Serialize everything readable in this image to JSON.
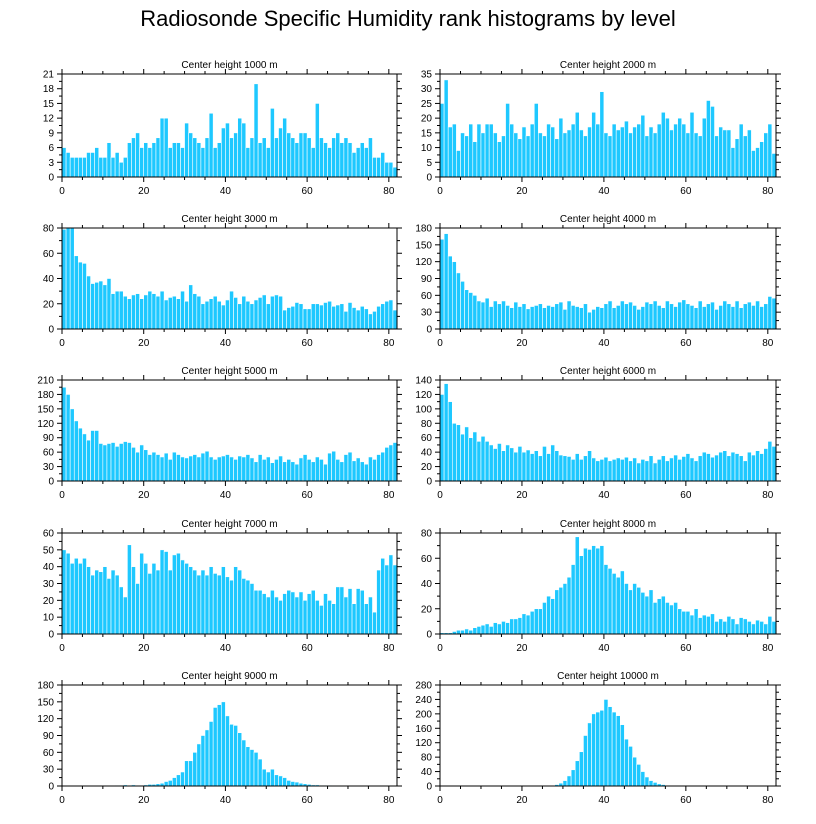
{
  "title": "Radiosonde Specific Humidity rank histograms by level",
  "colors": {
    "bar": "#1ec8ff",
    "bar_edge": "#ffffff",
    "axis": "#000000"
  },
  "chart_data": [
    {
      "type": "bar",
      "title": "Center height 1000 m",
      "x_start": 0,
      "xlim": [
        0,
        82
      ],
      "xticks": [
        0,
        20,
        40,
        60,
        80
      ],
      "ylim": [
        0,
        21
      ],
      "yticks": [
        0,
        3,
        6,
        9,
        12,
        15,
        18,
        21
      ],
      "values": [
        6,
        5,
        4,
        4,
        4,
        4,
        5,
        5,
        6,
        4,
        4,
        7,
        4,
        5,
        3,
        4,
        7,
        8,
        9,
        6,
        7,
        6,
        7,
        8,
        12,
        12,
        6,
        7,
        7,
        6,
        11,
        9,
        8,
        7,
        6,
        8,
        13,
        6,
        7,
        10,
        11,
        8,
        9,
        12,
        11,
        6,
        8,
        19,
        7,
        8,
        6,
        14,
        8,
        10,
        12,
        9,
        8,
        7,
        9,
        9,
        8,
        6,
        15,
        8,
        7,
        6,
        8,
        9,
        7,
        8,
        7,
        5,
        6,
        7,
        6,
        8,
        4,
        4,
        5,
        3,
        3,
        2
      ]
    },
    {
      "type": "bar",
      "title": "Center height 2000 m",
      "x_start": 0,
      "xlim": [
        0,
        82
      ],
      "xticks": [
        0,
        20,
        40,
        60,
        80
      ],
      "ylim": [
        0,
        35
      ],
      "yticks": [
        0,
        5,
        10,
        15,
        20,
        25,
        30,
        35
      ],
      "values": [
        25,
        33,
        17,
        18,
        9,
        15,
        14,
        18,
        12,
        18,
        15,
        18,
        18,
        15,
        12,
        14,
        25,
        18,
        15,
        13,
        17,
        14,
        18,
        25,
        15,
        14,
        18,
        17,
        13,
        20,
        15,
        16,
        18,
        22,
        16,
        14,
        17,
        22,
        18,
        29,
        15,
        14,
        18,
        16,
        17,
        19,
        15,
        17,
        18,
        21,
        14,
        17,
        15,
        18,
        22,
        20,
        16,
        18,
        20,
        18,
        15,
        22,
        15,
        14,
        20,
        26,
        24,
        14,
        17,
        16,
        16,
        10,
        13,
        18,
        14,
        16,
        9,
        10,
        12,
        15,
        18,
        8
      ]
    },
    {
      "type": "bar",
      "title": "Center height 3000 m",
      "x_start": 0,
      "xlim": [
        0,
        82
      ],
      "xticks": [
        0,
        20,
        40,
        60,
        80
      ],
      "ylim": [
        0,
        80
      ],
      "yticks": [
        0,
        20,
        40,
        60,
        80
      ],
      "values": [
        79,
        80,
        80,
        58,
        53,
        52,
        42,
        36,
        37,
        38,
        35,
        40,
        28,
        30,
        30,
        26,
        24,
        27,
        28,
        24,
        27,
        30,
        28,
        26,
        30,
        23,
        25,
        26,
        24,
        30,
        22,
        35,
        28,
        26,
        20,
        22,
        24,
        26,
        22,
        19,
        23,
        30,
        25,
        20,
        26,
        22,
        20,
        23,
        25,
        27,
        20,
        26,
        27,
        26,
        15,
        17,
        18,
        21,
        20,
        16,
        16,
        20,
        20,
        19,
        21,
        22,
        18,
        19,
        20,
        14,
        21,
        17,
        15,
        18,
        16,
        12,
        14,
        18,
        20,
        22,
        23,
        15
      ]
    },
    {
      "type": "bar",
      "title": "Center height 4000 m",
      "x_start": 0,
      "xlim": [
        0,
        82
      ],
      "xticks": [
        0,
        20,
        40,
        60,
        80
      ],
      "ylim": [
        0,
        180
      ],
      "yticks": [
        0,
        30,
        60,
        90,
        120,
        150,
        180
      ],
      "values": [
        160,
        170,
        130,
        120,
        100,
        85,
        70,
        65,
        60,
        50,
        48,
        55,
        40,
        50,
        45,
        50,
        42,
        38,
        48,
        40,
        45,
        36,
        40,
        42,
        45,
        38,
        42,
        40,
        45,
        48,
        35,
        50,
        42,
        40,
        38,
        45,
        30,
        35,
        40,
        38,
        45,
        50,
        38,
        42,
        50,
        45,
        48,
        42,
        35,
        40,
        48,
        45,
        50,
        42,
        38,
        50,
        45,
        40,
        48,
        52,
        45,
        42,
        38,
        50,
        40,
        45,
        48,
        35,
        42,
        50,
        45,
        40,
        50,
        38,
        45,
        48,
        42,
        50,
        40,
        45,
        58,
        55
      ]
    },
    {
      "type": "bar",
      "title": "Center height 5000 m",
      "x_start": 0,
      "xlim": [
        0,
        82
      ],
      "xticks": [
        0,
        20,
        40,
        60,
        80
      ],
      "ylim": [
        0,
        210
      ],
      "yticks": [
        0,
        30,
        60,
        90,
        120,
        150,
        180,
        210
      ],
      "values": [
        195,
        180,
        150,
        125,
        110,
        98,
        85,
        105,
        105,
        78,
        75,
        78,
        80,
        72,
        78,
        82,
        80,
        70,
        60,
        75,
        65,
        55,
        60,
        55,
        50,
        58,
        45,
        60,
        55,
        50,
        48,
        52,
        55,
        50,
        58,
        62,
        50,
        45,
        50,
        52,
        55,
        50,
        45,
        52,
        50,
        55,
        48,
        40,
        55,
        45,
        50,
        38,
        45,
        52,
        40,
        45,
        40,
        35,
        48,
        55,
        45,
        40,
        50,
        45,
        35,
        58,
        62,
        45,
        40,
        55,
        60,
        42,
        48,
        40,
        35,
        50,
        45,
        55,
        60,
        70,
        75,
        80
      ]
    },
    {
      "type": "bar",
      "title": "Center height 6000 m",
      "x_start": 0,
      "xlim": [
        0,
        82
      ],
      "xticks": [
        0,
        20,
        40,
        60,
        80
      ],
      "ylim": [
        0,
        140
      ],
      "yticks": [
        0,
        20,
        40,
        60,
        80,
        100,
        120,
        140
      ],
      "values": [
        120,
        135,
        110,
        80,
        78,
        65,
        75,
        60,
        68,
        55,
        62,
        55,
        50,
        45,
        52,
        42,
        50,
        46,
        40,
        48,
        40,
        43,
        38,
        42,
        35,
        48,
        38,
        50,
        42,
        36,
        35,
        34,
        30,
        38,
        30,
        35,
        42,
        32,
        28,
        30,
        33,
        28,
        30,
        32,
        30,
        33,
        28,
        32,
        25,
        30,
        28,
        35,
        25,
        30,
        35,
        28,
        32,
        36,
        30,
        34,
        38,
        32,
        28,
        35,
        40,
        38,
        33,
        36,
        40,
        42,
        35,
        40,
        38,
        35,
        28,
        40,
        36,
        42,
        38,
        45,
        55,
        48
      ]
    },
    {
      "type": "bar",
      "title": "Center height 7000 m",
      "x_start": 0,
      "xlim": [
        0,
        82
      ],
      "xticks": [
        0,
        20,
        40,
        60,
        80
      ],
      "ylim": [
        0,
        60
      ],
      "yticks": [
        0,
        10,
        20,
        30,
        40,
        50,
        60
      ],
      "values": [
        50,
        48,
        42,
        45,
        42,
        45,
        40,
        35,
        38,
        37,
        40,
        33,
        38,
        35,
        28,
        22,
        53,
        40,
        30,
        48,
        42,
        36,
        42,
        38,
        50,
        49,
        38,
        47,
        48,
        44,
        42,
        40,
        38,
        35,
        38,
        35,
        40,
        36,
        35,
        40,
        34,
        32,
        40,
        38,
        33,
        32,
        30,
        26,
        26,
        24,
        22,
        26,
        22,
        20,
        24,
        26,
        25,
        22,
        25,
        20,
        24,
        26,
        20,
        17,
        24,
        20,
        18,
        28,
        28,
        22,
        27,
        18,
        27,
        26,
        18,
        22,
        13,
        38,
        45,
        41,
        47,
        41
      ]
    },
    {
      "type": "bar",
      "title": "Center height 8000 m",
      "x_start": 0,
      "xlim": [
        0,
        82
      ],
      "xticks": [
        0,
        20,
        40,
        60,
        80
      ],
      "ylim": [
        0,
        80
      ],
      "yticks": [
        0,
        20,
        40,
        60,
        80
      ],
      "values": [
        1,
        1,
        1,
        2,
        3,
        3,
        4,
        3,
        5,
        6,
        7,
        8,
        6,
        9,
        8,
        10,
        9,
        12,
        12,
        13,
        16,
        15,
        18,
        20,
        20,
        25,
        30,
        28,
        35,
        37,
        40,
        45,
        55,
        77,
        62,
        68,
        67,
        70,
        68,
        70,
        55,
        52,
        48,
        45,
        50,
        40,
        35,
        40,
        37,
        33,
        30,
        35,
        25,
        28,
        30,
        25,
        23,
        25,
        20,
        18,
        18,
        15,
        20,
        13,
        15,
        14,
        16,
        10,
        12,
        10,
        14,
        12,
        8,
        13,
        12,
        10,
        8,
        11,
        10,
        8,
        14,
        10
      ]
    },
    {
      "type": "bar",
      "title": "Center height 9000 m",
      "x_start": 0,
      "xlim": [
        0,
        82
      ],
      "xticks": [
        0,
        20,
        40,
        60,
        80
      ],
      "ylim": [
        0,
        180
      ],
      "yticks": [
        0,
        30,
        60,
        90,
        120,
        150,
        180
      ],
      "values": [
        0,
        0,
        0,
        0,
        0,
        0,
        0,
        0,
        0,
        0,
        0,
        0,
        0,
        1,
        1,
        2,
        1,
        2,
        1,
        1,
        2,
        3,
        3,
        4,
        5,
        8,
        10,
        15,
        20,
        25,
        45,
        45,
        60,
        75,
        90,
        100,
        115,
        140,
        145,
        150,
        125,
        110,
        108,
        95,
        82,
        70,
        65,
        60,
        48,
        30,
        25,
        30,
        20,
        18,
        15,
        10,
        8,
        7,
        5,
        4,
        3,
        2,
        2,
        1,
        1,
        1,
        0,
        0,
        0,
        0,
        0,
        0,
        0,
        0,
        0,
        0,
        0,
        0,
        0,
        0,
        0,
        0
      ]
    },
    {
      "type": "bar",
      "title": "Center height 10000 m",
      "x_start": 0,
      "xlim": [
        0,
        82
      ],
      "xticks": [
        0,
        20,
        40,
        60,
        80
      ],
      "ylim": [
        0,
        280
      ],
      "yticks": [
        0,
        40,
        80,
        120,
        160,
        200,
        240,
        280
      ],
      "values": [
        0,
        0,
        0,
        0,
        0,
        0,
        0,
        0,
        0,
        0,
        0,
        0,
        0,
        0,
        0,
        0,
        0,
        0,
        0,
        0,
        0,
        0,
        0,
        0,
        0,
        0,
        1,
        2,
        4,
        8,
        15,
        28,
        45,
        70,
        95,
        140,
        175,
        200,
        205,
        210,
        240,
        220,
        205,
        195,
        170,
        130,
        110,
        80,
        60,
        40,
        25,
        15,
        10,
        6,
        4,
        2,
        1,
        0,
        0,
        0,
        0,
        0,
        0,
        0,
        0,
        0,
        0,
        0,
        0,
        0,
        0,
        0,
        0,
        0,
        0,
        0,
        0,
        0,
        0,
        0,
        0,
        0
      ]
    }
  ]
}
